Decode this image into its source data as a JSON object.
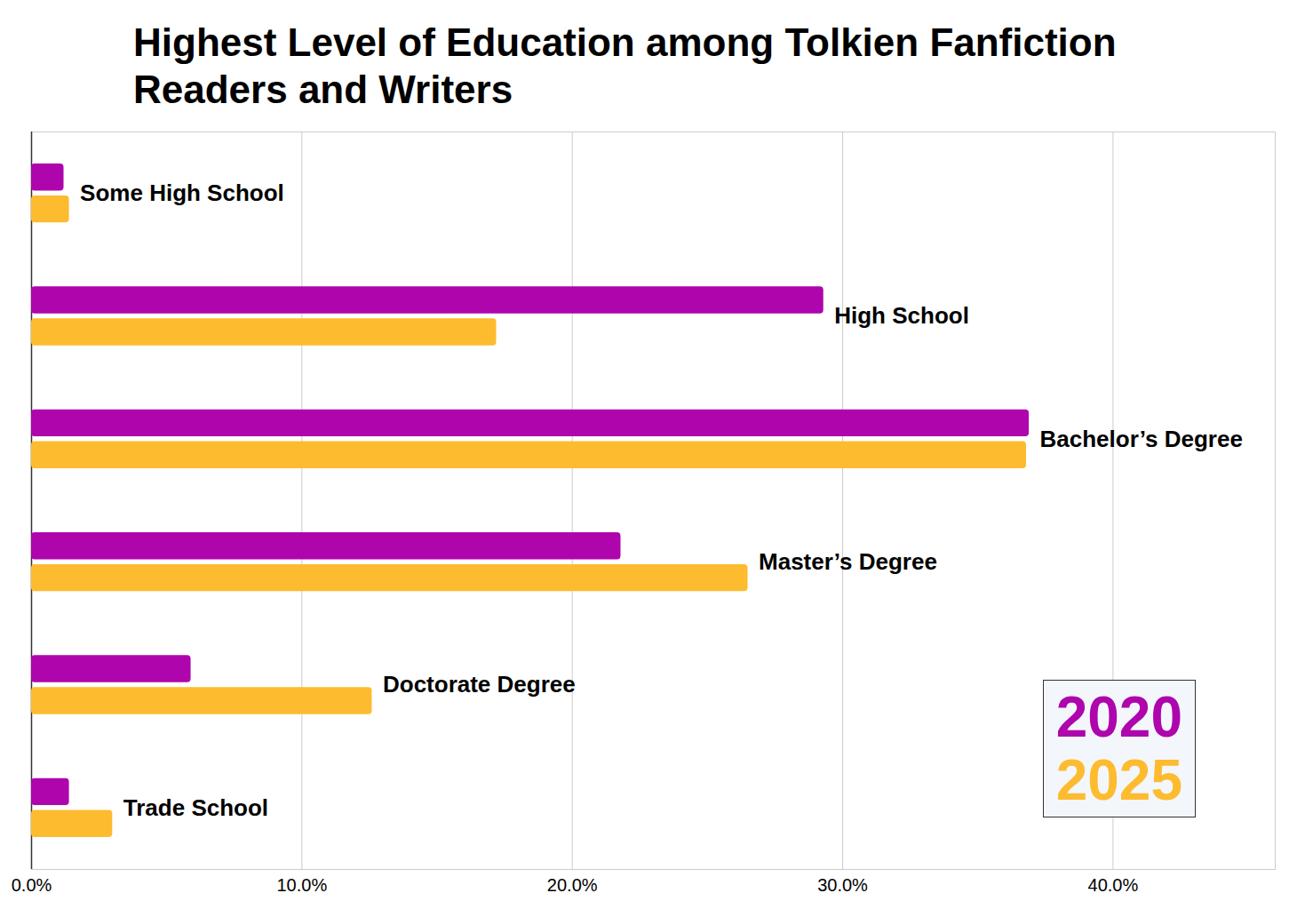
{
  "chart_data": {
    "type": "bar",
    "orientation": "horizontal",
    "title": "Highest Level of Education among Tolkien Fanfiction Readers and Writers",
    "categories": [
      "Some High School",
      "High School",
      "Bachelor’s Degree",
      "Master’s Degree",
      "Doctorate Degree",
      "Trade School"
    ],
    "series": [
      {
        "name": "2020",
        "color": "#ae05ad",
        "values": [
          1.2,
          29.3,
          36.9,
          21.8,
          5.9,
          1.4
        ]
      },
      {
        "name": "2025",
        "color": "#fdbb2f",
        "values": [
          1.4,
          17.2,
          36.8,
          26.5,
          12.6,
          3.0
        ]
      }
    ],
    "xlim": [
      0,
      46
    ],
    "xticks": [
      {
        "value": 0,
        "label": "0.0%"
      },
      {
        "value": 10,
        "label": "10.0%"
      },
      {
        "value": 20,
        "label": "20.0%"
      },
      {
        "value": 30,
        "label": "30.0%"
      },
      {
        "value": 40,
        "label": "40.0%"
      }
    ],
    "grid": true,
    "legend": "bottom-right",
    "tick_labels": "x"
  }
}
